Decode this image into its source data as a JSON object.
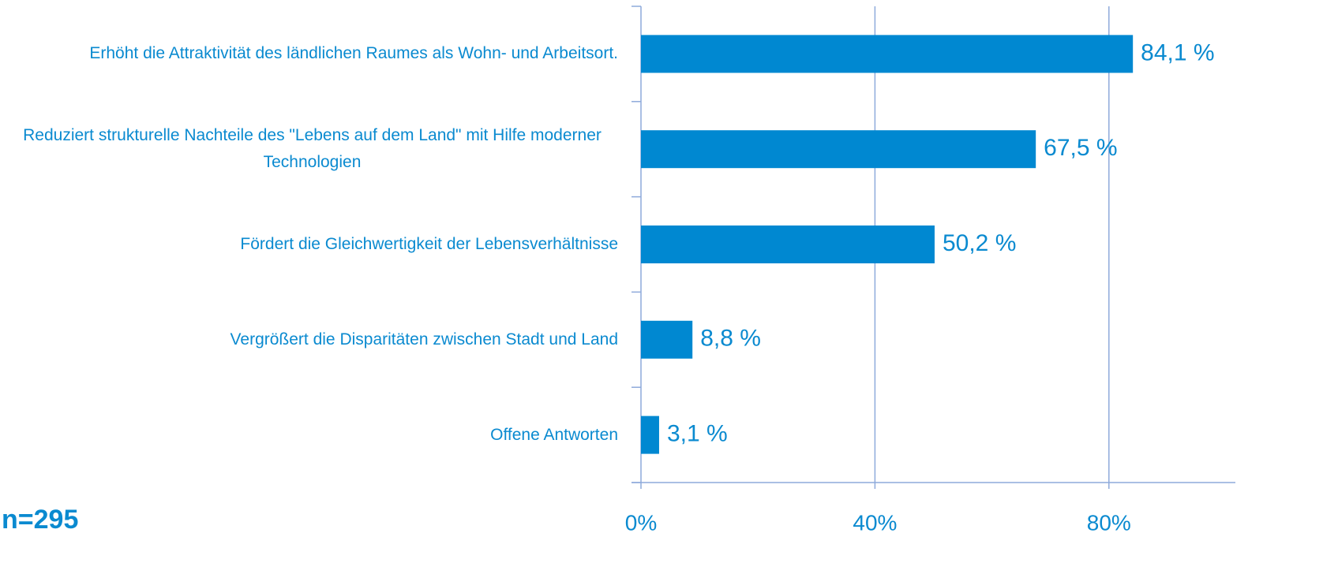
{
  "chart_data": {
    "type": "barh",
    "categories": [
      "Erhöht die Attraktivität des ländlichen Raumes als Wohn- und Arbeitsort.",
      "Reduziert strukturelle Nachteile des \"Lebens auf dem Land\" mit Hilfe moderner Technologien",
      "Fördert die Gleichwertigkeit der Lebensverhältnisse",
      "Vergrößert die Disparitäten zwischen Stadt und Land",
      "Offene Antworten"
    ],
    "values": [
      84.1,
      67.5,
      50.2,
      8.8,
      3.1
    ],
    "value_labels": [
      "84,1 %",
      "67,5 %",
      "50,2 %",
      "8,8 %",
      "3,1 %"
    ],
    "color": "#0088d1",
    "xlim": [
      0,
      100
    ],
    "xticks": [
      {
        "value": 0,
        "label": "0%"
      },
      {
        "value": 40,
        "label": "40%"
      },
      {
        "value": 80,
        "label": "80%"
      }
    ],
    "grid": true,
    "annotation": "n=295"
  }
}
